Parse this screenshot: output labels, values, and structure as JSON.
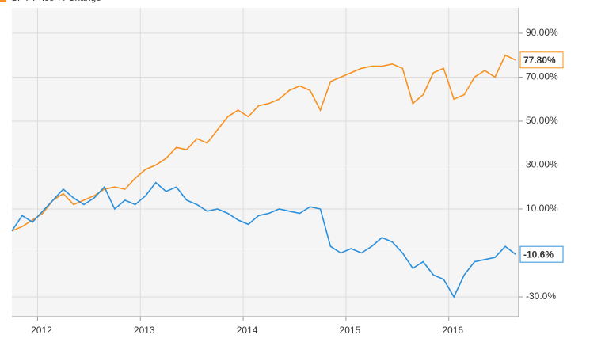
{
  "chart_data": {
    "type": "line",
    "x": [
      2011.75,
      2011.85,
      2011.95,
      2012.05,
      2012.15,
      2012.25,
      2012.35,
      2012.45,
      2012.55,
      2012.65,
      2012.75,
      2012.85,
      2012.95,
      2013.05,
      2013.15,
      2013.25,
      2013.35,
      2013.45,
      2013.55,
      2013.65,
      2013.75,
      2013.85,
      2013.95,
      2014.05,
      2014.15,
      2014.25,
      2014.35,
      2014.45,
      2014.55,
      2014.65,
      2014.75,
      2014.85,
      2014.95,
      2015.05,
      2015.15,
      2015.25,
      2015.35,
      2015.45,
      2015.55,
      2015.65,
      2015.75,
      2015.85,
      2015.95,
      2016.05,
      2016.15,
      2016.25,
      2016.35,
      2016.45,
      2016.55,
      2016.65
    ],
    "series": [
      {
        "name": "SPY Price % Change",
        "color": "#f7901e",
        "end_label": "77.80%",
        "values": [
          0,
          2,
          5,
          8,
          14,
          17,
          12,
          14,
          16,
          19,
          20,
          19,
          24,
          28,
          30,
          33,
          38,
          37,
          42,
          40,
          46,
          52,
          55,
          52,
          57,
          58,
          60,
          64,
          66,
          64,
          55,
          68,
          70,
          72,
          74,
          75,
          75,
          76,
          74,
          58,
          62,
          72,
          74,
          60,
          62,
          70,
          73,
          70,
          80,
          77.8
        ]
      },
      {
        "color": "#2a8fdc",
        "end_label": "-10.6%",
        "values": [
          0,
          7,
          4,
          9,
          14,
          19,
          15,
          12,
          15,
          20,
          10,
          14,
          12,
          16,
          22,
          18,
          20,
          14,
          12,
          9,
          10,
          8,
          5,
          3,
          7,
          8,
          10,
          9,
          8,
          11,
          10,
          -7,
          -10,
          -8,
          -10,
          -7,
          -3,
          -5,
          -10,
          -17,
          -14,
          -20,
          -22,
          -30,
          -20,
          -14,
          -13,
          -12,
          -7,
          -10.6
        ]
      }
    ],
    "xlim": [
      2011.75,
      2016.68
    ],
    "xticks": [
      2012,
      2013,
      2014,
      2015,
      2016
    ],
    "ylim": [
      -39,
      101.5
    ],
    "yticks": [
      {
        "value": 90,
        "label": "90.00%"
      },
      {
        "value": 70,
        "label": "70.00%"
      },
      {
        "value": 50,
        "label": "50.00%"
      },
      {
        "value": 30,
        "label": "30.00%"
      },
      {
        "value": 10,
        "label": "10.00%"
      },
      {
        "value": -10,
        "label": "-10.00%"
      },
      {
        "value": -30,
        "label": "-30.0%"
      }
    ],
    "grid": true
  }
}
